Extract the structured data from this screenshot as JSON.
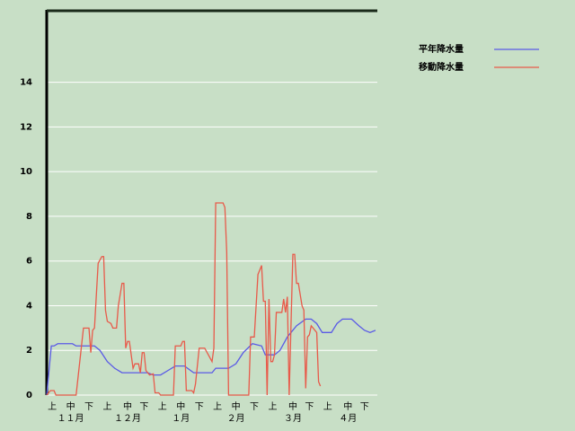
{
  "chart_data": {
    "type": "line",
    "series": [
      {
        "name": "平年降水量",
        "color": "#5a5ae6",
        "x": [
          0,
          2.5,
          4,
          6,
          14,
          16,
          26,
          29,
          33,
          37,
          41,
          55,
          58,
          62,
          66,
          70,
          75,
          80,
          90,
          92,
          99,
          103,
          107,
          112,
          117,
          119,
          124,
          127,
          131,
          136,
          141,
          144,
          147,
          150,
          155,
          158,
          161,
          166,
          170,
          173,
          176,
          179
        ],
        "values": [
          0,
          2.2,
          2.2,
          2.3,
          2.3,
          2.2,
          2.2,
          2.0,
          1.5,
          1.2,
          1.0,
          1.0,
          0.9,
          0.9,
          1.1,
          1.3,
          1.3,
          1.0,
          1.0,
          1.2,
          1.2,
          1.4,
          1.9,
          2.3,
          2.2,
          1.8,
          1.8,
          2.0,
          2.6,
          3.1,
          3.4,
          3.4,
          3.2,
          2.8,
          2.8,
          3.2,
          3.4,
          3.4,
          3.1,
          2.9,
          2.8,
          2.9
        ]
      },
      {
        "name": "移動降水量",
        "color": "#e85a4a",
        "x": [
          0,
          2,
          4,
          5,
          16,
          20,
          23,
          24,
          25,
          26,
          28,
          30,
          31,
          32,
          33,
          35,
          36,
          38,
          39,
          41,
          42,
          43,
          44,
          45,
          47,
          48,
          50,
          51,
          52,
          53,
          54,
          56,
          58,
          59,
          61,
          62,
          69,
          70,
          73,
          74,
          75,
          76,
          79,
          80,
          81,
          83,
          86,
          88,
          90,
          91,
          92,
          96,
          97,
          98,
          99,
          110,
          111,
          113,
          115,
          117,
          118,
          119,
          120,
          121,
          122,
          123,
          124,
          125,
          128,
          129,
          130,
          131,
          132,
          134,
          135,
          136,
          137,
          139,
          140,
          141,
          142,
          143,
          144,
          146,
          147,
          148,
          149
        ],
        "values": [
          0,
          0.2,
          0.2,
          0,
          0,
          3.0,
          3.0,
          1.9,
          2.9,
          3.0,
          5.9,
          6.2,
          6.2,
          3.8,
          3.3,
          3.2,
          3.0,
          3.0,
          4.0,
          5.0,
          5.0,
          2.1,
          2.4,
          2.4,
          1.2,
          1.4,
          1.4,
          1.0,
          1.9,
          1.9,
          1.1,
          0.9,
          0.95,
          0.1,
          0.1,
          0,
          0,
          2.2,
          2.2,
          2.4,
          2.4,
          0.2,
          0.2,
          0.1,
          0.5,
          2.1,
          2.1,
          1.8,
          1.5,
          2.1,
          8.6,
          8.6,
          8.4,
          6.4,
          0,
          0,
          2.6,
          2.6,
          5.4,
          5.8,
          4.2,
          4.2,
          0,
          4.3,
          1.5,
          1.5,
          1.8,
          3.7,
          3.7,
          4.3,
          3.7,
          4.4,
          0,
          6.3,
          6.3,
          5.0,
          5.0,
          4.0,
          3.8,
          0.3,
          2.6,
          2.7,
          3.1,
          2.9,
          2.8,
          0.6,
          0.4
        ]
      }
    ],
    "xlim": [
      0,
      180
    ],
    "xticks": [
      {
        "value": 3,
        "label": "上"
      },
      {
        "value": 13,
        "label": "中"
      },
      {
        "value": 23,
        "label": "下"
      },
      {
        "value": 33,
        "label": "上"
      },
      {
        "value": 44,
        "label": "中"
      },
      {
        "value": 53,
        "label": "下"
      },
      {
        "value": 63,
        "label": "上"
      },
      {
        "value": 73,
        "label": "中"
      },
      {
        "value": 83,
        "label": "下"
      },
      {
        "value": 93,
        "label": "上"
      },
      {
        "value": 103,
        "label": "中"
      },
      {
        "value": 113,
        "label": "下"
      },
      {
        "value": 123,
        "label": "上"
      },
      {
        "value": 134,
        "label": "中"
      },
      {
        "value": 143,
        "label": "下"
      },
      {
        "value": 153,
        "label": "上"
      },
      {
        "value": 164,
        "label": "中"
      },
      {
        "value": 173,
        "label": "下"
      }
    ],
    "month_ticks": [
      {
        "value": 13,
        "label": "１１月"
      },
      {
        "value": 44,
        "label": "１２月"
      },
      {
        "value": 73,
        "label": "１月"
      },
      {
        "value": 103,
        "label": "２月"
      },
      {
        "value": 134,
        "label": "３月"
      },
      {
        "value": 164,
        "label": "４月"
      }
    ],
    "ylim": [
      0,
      17.2
    ],
    "yticks": [
      0,
      2,
      4,
      6,
      8,
      10,
      12,
      14
    ],
    "grid": true,
    "legend": "right"
  }
}
